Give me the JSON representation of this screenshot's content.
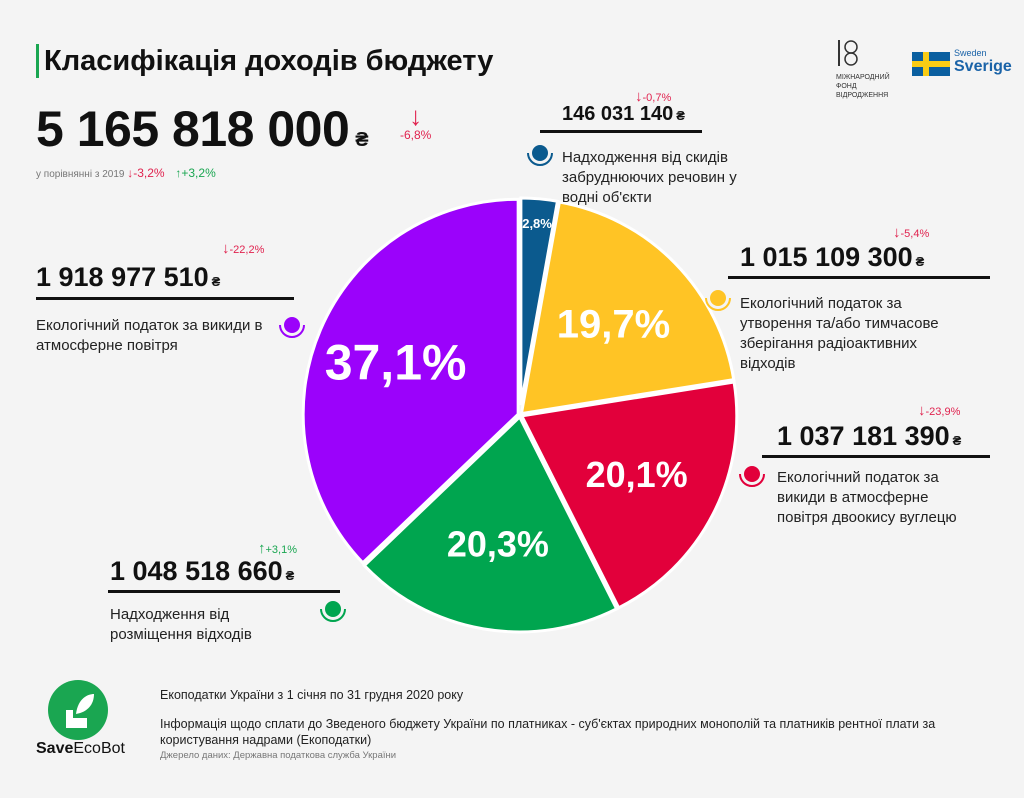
{
  "title": "Класифікація доходів бюджету",
  "total": {
    "value": "5 165 818 000",
    "currency": "₴",
    "change": "-6,8%",
    "arrow": "down"
  },
  "comparison": {
    "label": "у порівнянні з 2019",
    "down": "-3,2%",
    "up": "+3,2%"
  },
  "logos": {
    "fund": "МІЖНАРОДНИЙ ФОНД ВІДРОДЖЕННЯ",
    "sweden_small": "Sweden",
    "sweden_big": "Sverige",
    "brand": "SaveEcoBot",
    "brand_bold": "Save",
    "brand_rest": "EcoBot"
  },
  "currency_symbol": "₴",
  "chart_data": {
    "type": "pie",
    "categories": [
      "Надходження від скидів забруднюючих речовин у водні об'єкти",
      "Екологічний податок за утворення та/або тимчасове зберігання радіоактивних відходів",
      "Екологічний податок за викиди в атмосферне повітря двоокису вуглецю",
      "Надходження від розміщення відходів",
      "Екологічний податок за викиди в атмосферне повітря"
    ],
    "values": [
      146031140,
      1015109300,
      1037181390,
      1048518660,
      1918977510
    ],
    "value_labels": [
      "146 031 140",
      "1 015 109 300",
      "1 037 181 390",
      "1 048 518 660",
      "1 918 977 510"
    ],
    "percent_labels": [
      "2,8%",
      "19,7%",
      "20,1%",
      "20,3%",
      "37,1%"
    ],
    "changes": [
      "-0,7%",
      "-5,4%",
      "-23,9%",
      "+3,1%",
      "-22,2%"
    ],
    "colors": [
      "#0b5a8e",
      "#ffc425",
      "#e2003b",
      "#00a54f",
      "#9b02fb"
    ]
  },
  "footer": {
    "line1": "Екоподатки України з 1 січня по 31 грудня 2020 року",
    "line2": "Інформація щодо сплати до Зведеного бюджету України по платниках - суб'єктах природних монополій та платників рентної плати за користування надрами (Екоподатки)",
    "source": "Джерело даних: Державна податкова служба України"
  }
}
